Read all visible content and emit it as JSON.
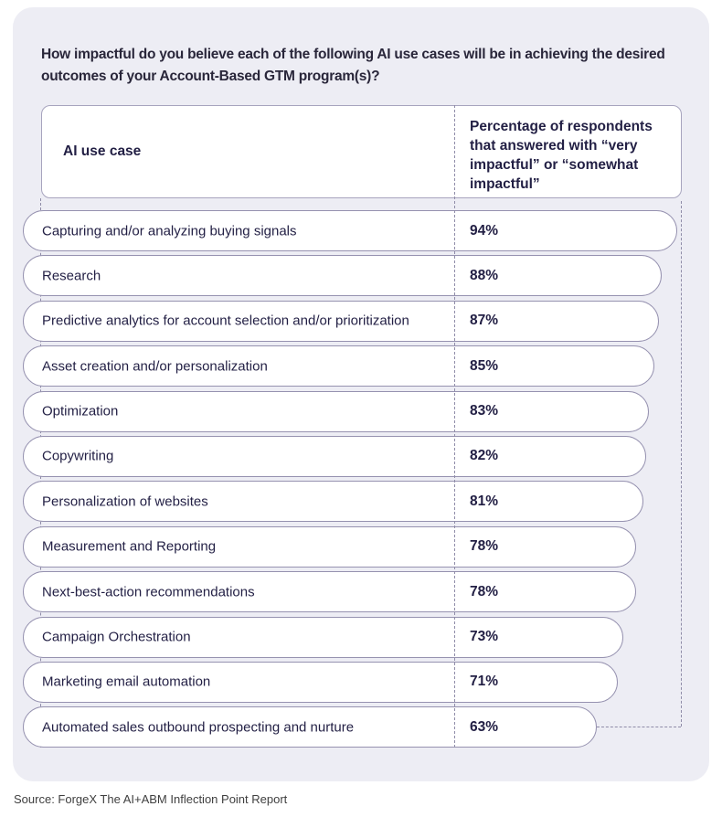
{
  "title": {
    "line1": "How impactful do you believe each of the following AI use cases will be in achieving the desired",
    "line2": "outcomes of your Account-Based GTM program(s)?"
  },
  "table": {
    "col1_header": "AI use case",
    "col2_header": "Percentage of respondents that answered with “very impactful” or “somewhat impactful”",
    "rows": [
      {
        "label": "Capturing and/or analyzing buying signals",
        "value": 94
      },
      {
        "label": "Research",
        "value": 88
      },
      {
        "label": "Predictive analytics for account selection and/or prioritization",
        "value": 87
      },
      {
        "label": "Asset creation and/or personalization",
        "value": 85
      },
      {
        "label": "Optimization",
        "value": 83
      },
      {
        "label": "Copywriting",
        "value": 82
      },
      {
        "label": "Personalization of websites",
        "value": 81
      },
      {
        "label": "Measurement and Reporting",
        "value": 78
      },
      {
        "label": "Next-best-action recommendations",
        "value": 78
      },
      {
        "label": "Campaign Orchestration",
        "value": 73
      },
      {
        "label": "Marketing email automation",
        "value": 71
      },
      {
        "label": "Automated sales outbound prospecting and nurture",
        "value": 63
      }
    ]
  },
  "source": "Source: ForgeX The AI+ABM Inflection Point Report",
  "colors": {
    "card_bg": "#ededf4",
    "pill_border": "#9692b0",
    "dashed_line": "#8f8ca8",
    "navy_text": "#221f44",
    "title_text": "#29263a",
    "source_text": "#3f3f3f"
  },
  "chart_data": {
    "type": "bar",
    "orientation": "horizontal",
    "title": "How impactful do you believe each of the following AI use cases will be in achieving the desired outcomes of your Account-Based GTM program(s)?",
    "categories": [
      "Capturing and/or analyzing buying signals",
      "Research",
      "Predictive analytics for account selection and/or prioritization",
      "Asset creation and/or personalization",
      "Optimization",
      "Copywriting",
      "Personalization of websites",
      "Measurement and Reporting",
      "Next-best-action recommendations",
      "Campaign Orchestration",
      "Marketing email automation",
      "Automated sales outbound prospecting and nurture"
    ],
    "values": [
      94,
      88,
      87,
      85,
      83,
      82,
      81,
      78,
      78,
      73,
      71,
      63
    ],
    "unit": "%",
    "xlabel": "AI use case",
    "ylabel": "Percentage of respondents that answered with “very impactful” or “somewhat impactful”",
    "xlim": [
      0,
      100
    ],
    "grid": false,
    "legend": "none",
    "annotations": [
      "Source: ForgeX The AI+ABM Inflection Point Report"
    ]
  }
}
